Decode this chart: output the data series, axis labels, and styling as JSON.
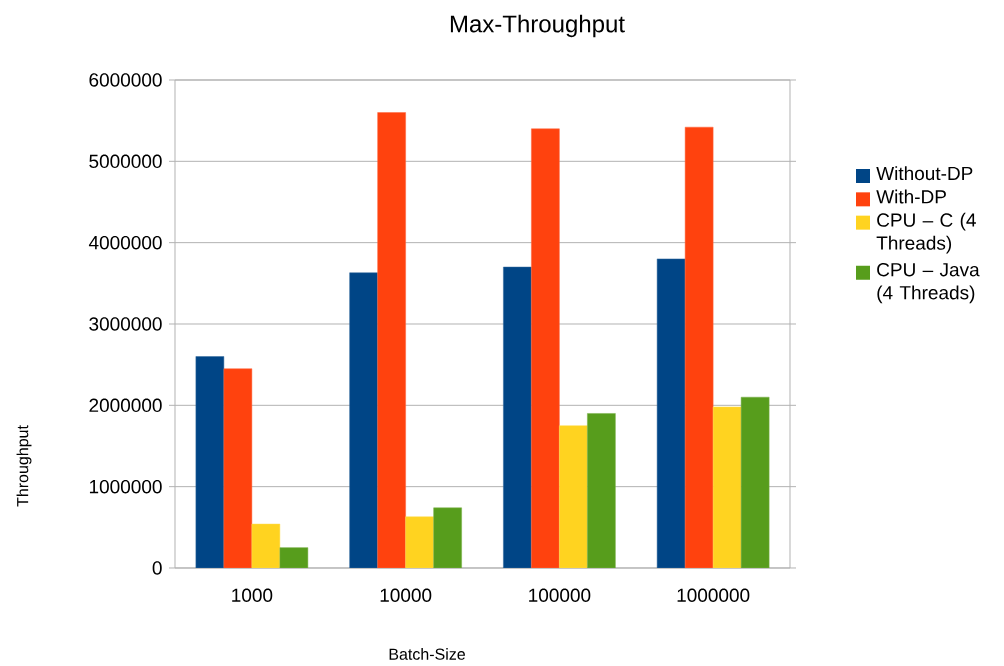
{
  "chart_data": {
    "type": "bar",
    "title": "Max-Throughput",
    "xlabel": "Batch-Size",
    "ylabel": "Throughput",
    "categories": [
      "1000",
      "10000",
      "100000",
      "1000000"
    ],
    "series": [
      {
        "name": "Without-DP",
        "color": "#004586",
        "values": [
          2600000,
          3630000,
          3700000,
          3800000
        ]
      },
      {
        "name": "With-DP",
        "color": "#ff420e",
        "values": [
          2450000,
          5600000,
          5400000,
          5420000
        ]
      },
      {
        "name": "CPU – C (4 Threads)",
        "color": "#ffd320",
        "values": [
          540000,
          630000,
          1750000,
          1980000
        ]
      },
      {
        "name": "CPU – Java (4 Threads)",
        "color": "#579d1c",
        "values": [
          250000,
          740000,
          1900000,
          2100000
        ]
      }
    ],
    "ylim": [
      0,
      6000000
    ],
    "yticks": [
      0,
      1000000,
      2000000,
      3000000,
      4000000,
      5000000,
      6000000
    ],
    "grid": "y",
    "legend": "right"
  }
}
